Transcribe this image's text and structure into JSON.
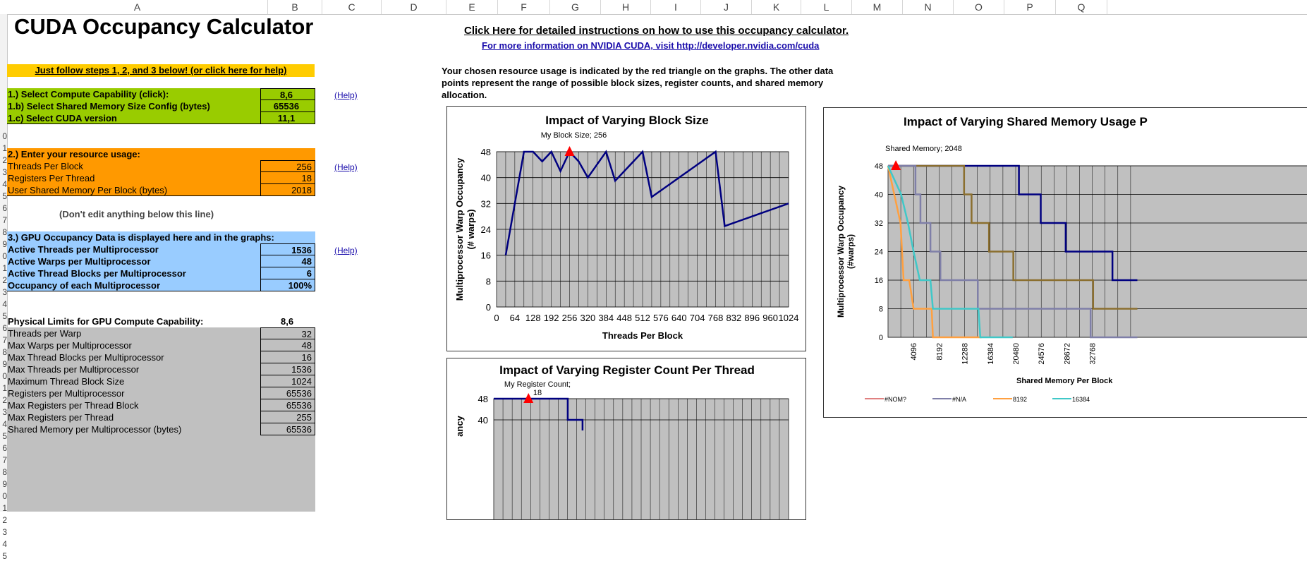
{
  "columns": [
    "A",
    "B",
    "C",
    "D",
    "E",
    "F",
    "G",
    "H",
    "I",
    "J",
    "K",
    "L",
    "M",
    "N",
    "O",
    "P",
    "Q"
  ],
  "rows": [
    "0",
    "1",
    "2",
    "3",
    "4",
    "5",
    "6",
    "7",
    "8",
    "9",
    "0",
    "1",
    "2",
    "3",
    "4",
    "5",
    "6",
    "7",
    "8",
    "9",
    "0",
    "1",
    "2",
    "3",
    "4",
    "5",
    "6",
    "7",
    "8",
    "9",
    "0",
    "1",
    "2",
    "3",
    "4",
    "5"
  ],
  "title": "CUDA Occupancy Calculator",
  "instructions_link": "Click Here for detailed instructions on how to use this occupancy calculator.",
  "info_link": "For more information on NVIDIA CUDA, visit http://developer.nvidia.com/cuda",
  "steps_link": "Just follow steps 1, 2, and 3 below! (or click here for help)",
  "description": "Your chosen resource usage is indicated by the red triangle on the graphs.  The other data points represent the range of possible block sizes, register counts, and shared memory allocation.",
  "help_label": "(Help)",
  "step1": {
    "rows": [
      {
        "label": "1.) Select Compute Capability (click):",
        "value": "8,6"
      },
      {
        "label": "1.b) Select Shared Memory Size Config (bytes)",
        "value": "65536"
      },
      {
        "label": "1.c) Select CUDA version",
        "value": "11,1"
      }
    ]
  },
  "step2": {
    "header": "2.) Enter your resource usage:",
    "rows": [
      {
        "label": "Threads Per Block",
        "value": "256"
      },
      {
        "label": "Registers Per Thread",
        "value": "18"
      },
      {
        "label": "User Shared Memory Per Block (bytes)",
        "value": "2018"
      }
    ]
  },
  "dont_edit": "(Don't edit anything below this line)",
  "step3": {
    "header": "3.) GPU Occupancy Data is displayed here and in the graphs:",
    "rows": [
      {
        "label": "Active Threads per Multiprocessor",
        "value": "1536"
      },
      {
        "label": "Active Warps per Multiprocessor",
        "value": "48"
      },
      {
        "label": "Active Thread Blocks per Multiprocessor",
        "value": "6"
      },
      {
        "label": "Occupancy of each Multiprocessor",
        "value": "100%"
      }
    ]
  },
  "limits": {
    "header": "Physical Limits for GPU Compute Capability:",
    "header_value": "8,6",
    "rows": [
      {
        "label": "Threads per Warp",
        "value": "32"
      },
      {
        "label": "Max Warps per Multiprocessor",
        "value": "48"
      },
      {
        "label": "Max Thread Blocks per Multiprocessor",
        "value": "16"
      },
      {
        "label": "Max Threads per Multiprocessor",
        "value": "1536"
      },
      {
        "label": "Maximum Thread Block Size",
        "value": "1024"
      },
      {
        "label": "Registers per Multiprocessor",
        "value": "65536"
      },
      {
        "label": "Max Registers per Thread Block",
        "value": "65536"
      },
      {
        "label": "Max Registers per Thread",
        "value": "255"
      },
      {
        "label": "Shared Memory per Multiprocessor (bytes)",
        "value": "65536"
      }
    ]
  },
  "colors": {
    "step_yellow": "#ffcc00",
    "step1_green": "#99cc00",
    "step2_orange": "#ff9900",
    "step3_blue": "#99ccff",
    "limits_gray": "#c0c0c0",
    "plot_bg": "#c0c0c0",
    "series_navy": "#000080",
    "marker_red": "#ff0000"
  },
  "chart_data": [
    {
      "type": "line",
      "title": "Impact of Varying Block Size",
      "xlabel": "Threads Per Block",
      "ylabel": "Multiprocessor Warp Occupancy (# warps)",
      "ylabel_lines": [
        "Multiprocessor Warp Occupancy",
        "(# warps)"
      ],
      "annotation": "My Block Size; 256",
      "x_ticks": [
        "0",
        "64",
        "128",
        "192",
        "256",
        "320",
        "384",
        "448",
        "512",
        "576",
        "640",
        "704",
        "768",
        "832",
        "896",
        "960",
        "1024"
      ],
      "y_ticks": [
        "0",
        "8",
        "16",
        "24",
        "32",
        "40",
        "48"
      ],
      "xlim": [
        0,
        1024
      ],
      "ylim": [
        0,
        48
      ],
      "grid": true,
      "marker": {
        "x": 256,
        "y": 48
      },
      "series": [
        {
          "values_xy": [
            [
              32,
              16
            ],
            [
              64,
              32
            ],
            [
              96,
              48
            ],
            [
              128,
              48
            ],
            [
              160,
              45
            ],
            [
              192,
              48
            ],
            [
              224,
              42
            ],
            [
              256,
              48
            ],
            [
              288,
              45
            ],
            [
              320,
              40
            ],
            [
              352,
              44
            ],
            [
              384,
              48
            ],
            [
              416,
              39
            ],
            [
              448,
              42
            ],
            [
              480,
              45
            ],
            [
              512,
              48
            ],
            [
              544,
              34
            ],
            [
              576,
              36
            ],
            [
              608,
              38
            ],
            [
              640,
              40
            ],
            [
              672,
              42
            ],
            [
              704,
              44
            ],
            [
              736,
              46
            ],
            [
              768,
              48
            ],
            [
              800,
              25
            ],
            [
              832,
              26
            ],
            [
              864,
              27
            ],
            [
              896,
              28
            ],
            [
              928,
              29
            ],
            [
              960,
              30
            ],
            [
              992,
              31
            ],
            [
              1024,
              32
            ]
          ]
        }
      ]
    },
    {
      "type": "line",
      "title": "Impact of Varying Register Count Per Thread",
      "ylabel": "Multiprocessor Warp Occupancy",
      "ylabel_visible": "ancy",
      "annotation_lines": [
        "My Register Count;",
        "18"
      ],
      "y_ticks": [
        "48",
        "40"
      ],
      "ylim": [
        0,
        48
      ],
      "grid": true,
      "marker": {
        "x": 18,
        "y": 48
      },
      "series": [
        {
          "values_xy": [
            [
              0,
              48
            ],
            [
              32,
              48
            ],
            [
              40,
              48
            ],
            [
              40,
              40
            ],
            [
              48,
              40
            ],
            [
              48,
              36
            ]
          ]
        }
      ]
    },
    {
      "type": "line",
      "title": "Impact of Varying Shared Memory Usage P",
      "xlabel": "Shared Memory Per Block",
      "ylabel": "Multiprocessor Warp Occupancy (#warps)",
      "ylabel_lines": [
        "Multiprocessor Warp Occupancy",
        "(#warps)"
      ],
      "annotation": "Shared Memory; 2048",
      "x_ticks": [
        "4096",
        "8192",
        "12288",
        "16384",
        "20480",
        "24576",
        "28672",
        "32768"
      ],
      "y_ticks": [
        "0",
        "8",
        "16",
        "24",
        "32",
        "40",
        "48"
      ],
      "ylim": [
        0,
        48
      ],
      "grid": true,
      "marker": {
        "x": 2048,
        "y": 48
      },
      "legend": [
        "#NOM?",
        "#N/A",
        "8192",
        "16384"
      ],
      "legend_colors": [
        "#e08080",
        "#7f7fa8",
        "#ffa040",
        "#40c8c8"
      ],
      "series": [
        {
          "name": "navy",
          "color": "#000080",
          "values_xy": [
            [
              0,
              48
            ],
            [
              21000,
              48
            ],
            [
              21000,
              40
            ],
            [
              24500,
              40
            ],
            [
              24500,
              32
            ],
            [
              28500,
              32
            ],
            [
              28500,
              24
            ],
            [
              36000,
              24
            ],
            [
              36000,
              16
            ],
            [
              40000,
              16
            ]
          ]
        },
        {
          "name": "olive",
          "color": "#8b6f2f",
          "values_xy": [
            [
              0,
              48
            ],
            [
              12200,
              48
            ],
            [
              12200,
              40
            ],
            [
              13400,
              40
            ],
            [
              13400,
              32
            ],
            [
              16200,
              32
            ],
            [
              16200,
              24
            ],
            [
              20100,
              24
            ],
            [
              20100,
              16
            ],
            [
              32900,
              16
            ],
            [
              32900,
              8
            ],
            [
              40000,
              8
            ]
          ]
        },
        {
          "name": "#N/A",
          "color": "#7f7fa8",
          "values_xy": [
            [
              0,
              48
            ],
            [
              4400,
              48
            ],
            [
              4400,
              40
            ],
            [
              5200,
              40
            ],
            [
              5200,
              32
            ],
            [
              6800,
              32
            ],
            [
              6800,
              24
            ],
            [
              8400,
              24
            ],
            [
              8400,
              16
            ],
            [
              14400,
              16
            ],
            [
              14400,
              8
            ],
            [
              32500,
              8
            ],
            [
              32500,
              0
            ],
            [
              40000,
              0
            ]
          ]
        },
        {
          "name": "8192",
          "color": "#ffa040",
          "values_xy": [
            [
              0,
              48
            ],
            [
              1000,
              40
            ],
            [
              2000,
              32
            ],
            [
              2500,
              16
            ],
            [
              3400,
              16
            ],
            [
              4100,
              8
            ],
            [
              7000,
              8
            ],
            [
              7200,
              0
            ],
            [
              15000,
              0
            ]
          ]
        },
        {
          "name": "16384",
          "color": "#40c8c8",
          "values_xy": [
            [
              0,
              48
            ],
            [
              2100,
              40
            ],
            [
              3200,
              32
            ],
            [
              4100,
              24
            ],
            [
              5100,
              16
            ],
            [
              6800,
              16
            ],
            [
              7200,
              8
            ],
            [
              14500,
              8
            ],
            [
              14800,
              0
            ],
            [
              20000,
              0
            ]
          ]
        }
      ]
    }
  ]
}
